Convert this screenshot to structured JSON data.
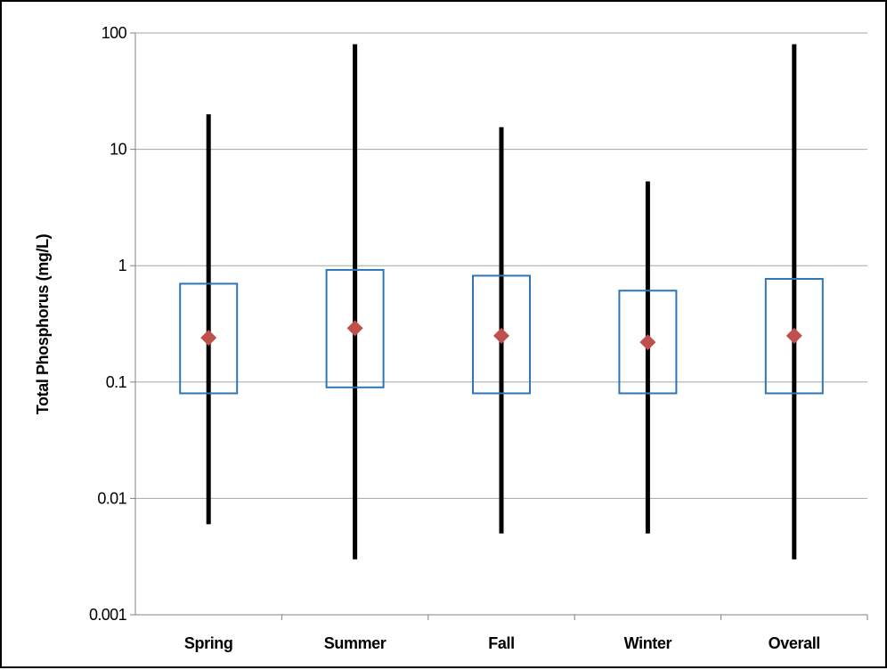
{
  "chart_data": {
    "type": "box",
    "title": "",
    "xlabel": "",
    "ylabel": "Total Phosphorus (mg/L)",
    "yscale": "log",
    "ylim": [
      0.001,
      100
    ],
    "ytick_values": [
      0.001,
      0.01,
      0.1,
      1,
      10,
      100
    ],
    "ytick_labels": [
      "0.001",
      "0.01",
      "0.1",
      "1",
      "10",
      "100"
    ],
    "grid": true,
    "legend": "none",
    "categories": [
      "Spring",
      "Summer",
      "Fall",
      "Winter",
      "Overall"
    ],
    "series": [
      {
        "min": [
          0.006,
          0.003,
          0.005,
          0.005,
          0.003
        ],
        "q1": [
          0.08,
          0.09,
          0.08,
          0.08,
          0.08
        ],
        "mean": [
          0.24,
          0.29,
          0.25,
          0.22,
          0.25
        ],
        "q3": [
          0.7,
          0.92,
          0.82,
          0.61,
          0.77
        ],
        "max": [
          20,
          80,
          15.5,
          5.3,
          80
        ]
      }
    ],
    "colors": {
      "box": "#2e75b6",
      "whisker": "#000000",
      "mean_marker": "#c0504d",
      "grid": "#a6a6a6",
      "axis": "#808080"
    }
  }
}
